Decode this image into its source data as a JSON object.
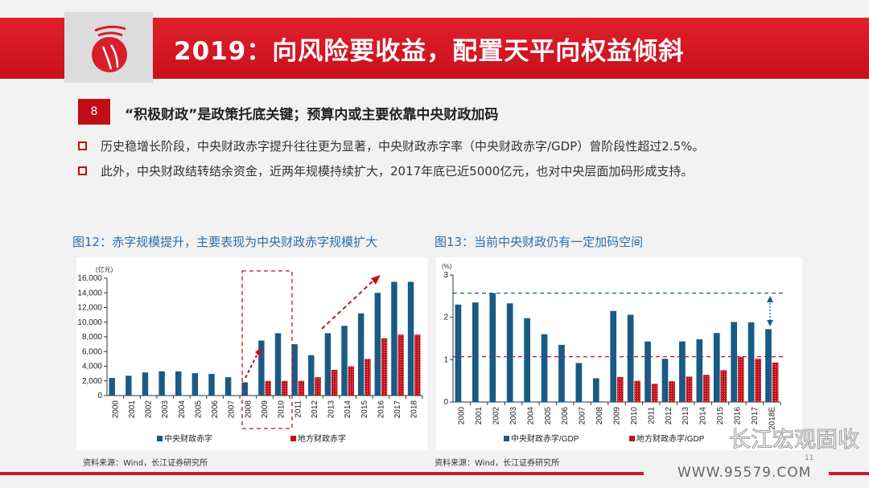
{
  "header": {
    "title": "2019：向风险要收益，配置天平向权益倾斜"
  },
  "section": {
    "number": "8",
    "heading": "“积极财政”是政策托底关键；预算内或主要依靠中央财政加码"
  },
  "bullets": [
    "历史稳增长阶段，中央财政赤字提升往往更为显著，中央财政赤字率（中央财政赤字/GDP）曾阶段性超过2.5%。",
    "此外，中央财政结转结余资金，近两年规模持续扩大，2017年底已近5000亿元，也对中央层面加码形成支持。"
  ],
  "colors": {
    "accent": "#c00d17",
    "central": "#1a5a85",
    "local": "#c0141e",
    "title_blue": "#2a6fb0"
  },
  "chart_data": [
    {
      "type": "bar",
      "title": "图12：赤字规模提升，主要表现为中央财政赤字规模扩大",
      "unit": "(亿元)",
      "categories": [
        "2000",
        "2001",
        "2002",
        "2003",
        "2004",
        "2005",
        "2006",
        "2007",
        "2008",
        "2009",
        "2010",
        "2011",
        "2012",
        "2013",
        "2014",
        "2015",
        "2016",
        "2017",
        "2018"
      ],
      "series": [
        {
          "name": "中央财政赤字",
          "values": [
            2400,
            2700,
            3150,
            3300,
            3300,
            3050,
            2950,
            2500,
            1800,
            7500,
            8500,
            7000,
            5500,
            8500,
            9500,
            11200,
            14000,
            15500,
            15500
          ]
        },
        {
          "name": "地方财政赤字",
          "values": [
            null,
            null,
            null,
            null,
            null,
            null,
            null,
            null,
            null,
            2000,
            2000,
            2000,
            2500,
            3500,
            4000,
            5000,
            7800,
            8300,
            8300
          ]
        }
      ],
      "ylim": [
        0,
        16000
      ],
      "yticks": [
        0,
        2000,
        4000,
        6000,
        8000,
        10000,
        12000,
        14000,
        16000
      ],
      "ytick_labels": [
        "0",
        "2,000",
        "4,000",
        "6,000",
        "8,000",
        "10,000",
        "12,000",
        "14,000",
        "16,000"
      ],
      "source": "资料来源：Wind，长江证券研究所"
    },
    {
      "type": "bar",
      "title": "图13：当前中央财政仍有一定加码空间",
      "unit": "(%)",
      "categories": [
        "2000",
        "2001",
        "2002",
        "2003",
        "2004",
        "2005",
        "2006",
        "2007",
        "2008",
        "2009",
        "2010",
        "2011",
        "2012",
        "2013",
        "2014",
        "2015",
        "2016",
        "2017",
        "2018E"
      ],
      "series": [
        {
          "name": "中央财政赤字/GDP",
          "values": [
            2.3,
            2.35,
            2.57,
            2.33,
            1.98,
            1.6,
            1.35,
            0.92,
            0.56,
            2.15,
            2.06,
            1.43,
            1.02,
            1.43,
            1.48,
            1.63,
            1.89,
            1.88,
            1.72
          ]
        },
        {
          "name": "地方财政赤字/GDP",
          "values": [
            null,
            null,
            null,
            null,
            null,
            null,
            null,
            null,
            null,
            0.59,
            0.5,
            0.43,
            0.49,
            0.6,
            0.64,
            0.75,
            1.07,
            1.02,
            0.93
          ]
        }
      ],
      "ylim": [
        0,
        3
      ],
      "yticks": [
        0,
        1,
        2,
        3
      ],
      "ytick_labels": [
        "0",
        "1",
        "2",
        "3"
      ],
      "reference_lines": [
        2.57,
        1.07
      ],
      "source": "资料来源：Wind，长江证券研究所"
    }
  ],
  "footer": {
    "url": "WWW.95579.COM",
    "page": "11",
    "watermark": "长江宏观固收"
  }
}
